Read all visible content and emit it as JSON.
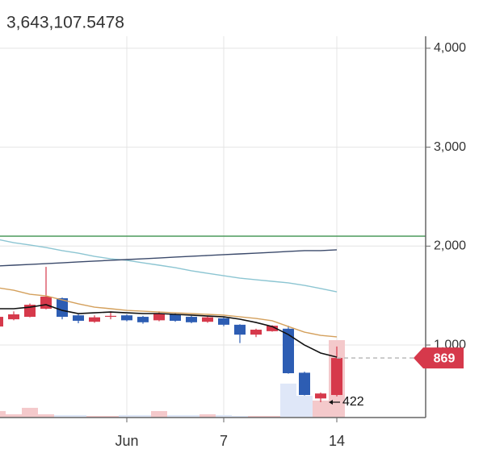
{
  "chart_data": {
    "type": "candlestick",
    "title": "3,643,107.5478",
    "categories": [
      null,
      null,
      null,
      null,
      null,
      null,
      null,
      null,
      "Jun",
      null,
      null,
      null,
      null,
      null,
      "7",
      null,
      null,
      null,
      null,
      null,
      null,
      "14"
    ],
    "open": [
      1187,
      1260,
      1285,
      1367,
      1473,
      1300,
      1235,
      1293,
      1300,
      1285,
      1250,
      1310,
      1285,
      1235,
      1270,
      1205,
      1105,
      1140,
      1165,
      720,
      460,
      495
    ],
    "high": [
      1390,
      1340,
      1420,
      1790,
      1480,
      1310,
      1300,
      1340,
      1310,
      1295,
      1340,
      1320,
      1295,
      1290,
      1280,
      1210,
      1165,
      1200,
      1195,
      730,
      520,
      985
    ],
    "low": [
      1187,
      1250,
      1280,
      1360,
      1260,
      1220,
      1225,
      1260,
      1240,
      1215,
      1240,
      1235,
      1220,
      1225,
      1190,
      1020,
      1080,
      1135,
      710,
      490,
      422,
      480
    ],
    "close": [
      1285,
      1310,
      1407,
      1489,
      1285,
      1245,
      1280,
      1295,
      1250,
      1230,
      1320,
      1245,
      1230,
      1280,
      1205,
      1105,
      1155,
      1195,
      715,
      495,
      510,
      869
    ],
    "up_color": "#d6394b",
    "down_color": "#2d5db3",
    "volume": [
      340000,
      170000,
      510000,
      170000,
      130000,
      130000,
      85000,
      85000,
      130000,
      130000,
      340000,
      130000,
      130000,
      170000,
      130000,
      85000,
      85000,
      85000,
      1780000,
      1140000,
      890000,
      4060000
    ],
    "volume_lim": [
      0,
      20000000
    ],
    "volume_up_color": "#f4c9cb",
    "volume_down_color": "#dfe7f8",
    "series": [
      {
        "color": "#111111",
        "values": [
          1367,
          1367,
          1383,
          1408,
          1350,
          1318,
          1326,
          1334,
          1326,
          1318,
          1318,
          1310,
          1302,
          1293,
          1285,
          1261,
          1228,
          1187,
          1106,
          1000,
          919,
          878
        ]
      },
      {
        "color": "#d4a05c",
        "values": [
          1579,
          1554,
          1513,
          1497,
          1456,
          1416,
          1383,
          1367,
          1350,
          1342,
          1334,
          1326,
          1318,
          1310,
          1302,
          1285,
          1269,
          1245,
          1187,
          1130,
          1098,
          1082
        ]
      },
      {
        "color": "#8cc5d2",
        "values": [
          2068,
          2035,
          2011,
          1986,
          1954,
          1929,
          1896,
          1872,
          1856,
          1831,
          1807,
          1782,
          1750,
          1725,
          1701,
          1676,
          1660,
          1644,
          1628,
          1603,
          1571,
          1538
        ]
      },
      {
        "color": "#3b4a6b",
        "values": [
          1799,
          1807,
          1815,
          1823,
          1831,
          1840,
          1848,
          1856,
          1864,
          1872,
          1880,
          1889,
          1897,
          1905,
          1913,
          1921,
          1929,
          1937,
          1946,
          1954,
          1954,
          1962
        ]
      }
    ],
    "hline": {
      "value": 2100,
      "color": "#4c9a5c"
    },
    "ylim": [
      267,
      4121
    ],
    "yticks": [
      {
        "value": 1000,
        "label": "1,000"
      },
      {
        "value": 2000,
        "label": "2,000"
      },
      {
        "value": 3000,
        "label": "3,000"
      },
      {
        "value": 4000,
        "label": "4,000"
      }
    ],
    "grid": true
  }
}
